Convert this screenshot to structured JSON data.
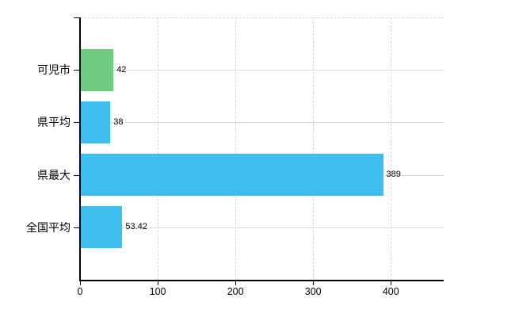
{
  "chart_data": {
    "type": "bar",
    "orientation": "horizontal",
    "title": "",
    "xlabel": "",
    "ylabel": "",
    "categories": [
      "可児市",
      "県平均",
      "県最大",
      "全国平均"
    ],
    "values": [
      42,
      38,
      389,
      53.42
    ],
    "value_labels": [
      "42",
      "38",
      "389",
      "53.42"
    ],
    "bar_colors": [
      "#6fcc80",
      "#3fbdee",
      "#3fbdee",
      "#3fbdee"
    ],
    "x_ticks": [
      0,
      100,
      200,
      300,
      400
    ],
    "x_tick_labels": [
      "0",
      "100",
      "200",
      "300",
      "400"
    ],
    "xlim": [
      0,
      468
    ],
    "grid": true,
    "legend": null,
    "colors": {
      "axis": "#000000",
      "gridline": "#d9d9d9",
      "background": "#ffffff",
      "text": "#000000"
    }
  }
}
